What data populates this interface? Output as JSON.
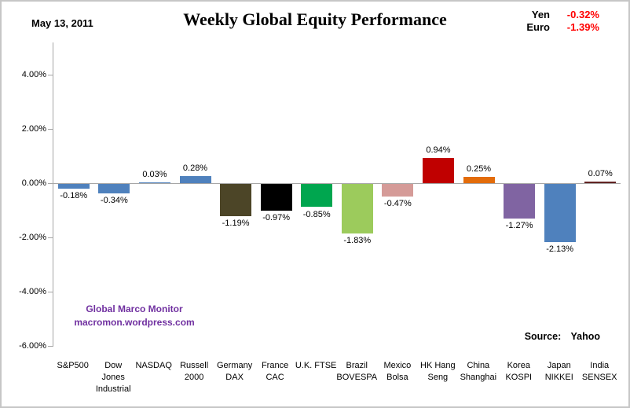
{
  "header": {
    "date": "May 13, 2011",
    "title": "Weekly Global Equity Performance",
    "currencies": [
      {
        "name": "Yen",
        "value": "-0.32%"
      },
      {
        "name": "Euro",
        "value": "-1.39%"
      }
    ],
    "currency_value_color": "#FF0000"
  },
  "watermark": {
    "line1": "Global Marco Monitor",
    "line2": "macromon.wordpress.com",
    "color": "#7030A0"
  },
  "source": {
    "label": "Source:",
    "value": "Yahoo"
  },
  "chart_data": {
    "type": "bar",
    "title": "Weekly Global Equity Performance",
    "categories": [
      "S&P500",
      "Dow Jones Industrial",
      "NASDAQ",
      "Russell 2000",
      "Germany DAX",
      "France CAC",
      "U.K. FTSE",
      "Brazil BOVESPA",
      "Mexico Bolsa",
      "HK Hang Seng",
      "China Shanghai",
      "Korea KOSPI",
      "Japan NIKKEI",
      "India SENSEX"
    ],
    "category_lines": [
      [
        "S&P500"
      ],
      [
        "Dow",
        "Jones",
        "Industrial"
      ],
      [
        "NASDAQ"
      ],
      [
        "Russell",
        "2000"
      ],
      [
        "Germany",
        "DAX"
      ],
      [
        "France",
        "CAC"
      ],
      [
        "U.K. FTSE"
      ],
      [
        "Brazil",
        "BOVESPA"
      ],
      [
        "Mexico",
        "Bolsa"
      ],
      [
        "HK Hang",
        "Seng"
      ],
      [
        "China",
        "Shanghai"
      ],
      [
        "Korea",
        "KOSPI"
      ],
      [
        "Japan",
        "NIKKEI"
      ],
      [
        "India",
        "SENSEX"
      ]
    ],
    "values": [
      -0.18,
      -0.34,
      0.03,
      0.28,
      -1.19,
      -0.97,
      -0.85,
      -1.83,
      -0.47,
      0.94,
      0.25,
      -1.27,
      -2.13,
      0.07
    ],
    "value_labels": [
      "-0.18%",
      "-0.34%",
      "0.03%",
      "0.28%",
      "-1.19%",
      "-0.97%",
      "-0.85%",
      "-1.83%",
      "-0.47%",
      "0.94%",
      "0.25%",
      "-1.27%",
      "-2.13%",
      "0.07%"
    ],
    "bar_colors": [
      "#4F81BD",
      "#4F81BD",
      "#4F81BD",
      "#4F81BD",
      "#4C4527",
      "#000000",
      "#00A64F",
      "#9CCB5C",
      "#D59B98",
      "#C00000",
      "#E36C0A",
      "#8064A2",
      "#4F81BD",
      "#632423"
    ],
    "yticks": [
      {
        "value": 4,
        "label": "4.00%"
      },
      {
        "value": 2,
        "label": "2.00%"
      },
      {
        "value": 0,
        "label": "0.00%"
      },
      {
        "value": -2,
        "label": "-2.00%"
      },
      {
        "value": -4,
        "label": "-4.00%"
      },
      {
        "value": -6,
        "label": "-6.00%"
      }
    ],
    "ylim": [
      -6,
      5.2
    ],
    "grid": false,
    "legend": false,
    "axis_color": "#A6A6A6"
  }
}
